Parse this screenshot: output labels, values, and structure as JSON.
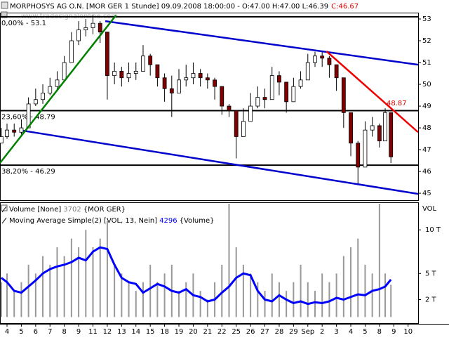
{
  "chart_data": [
    {
      "type": "candlestick",
      "title": "MORPHOSYS AG O.N. [MOR GER  1 Stunde] 09.09.2008 18:00:00 - O:47.00 H:47.00 L:46.39",
      "title_close": "C:46.67",
      "watermark": "www.tradesignalonline.com",
      "categories": [
        "4",
        "5",
        "6",
        "7",
        "8",
        "9",
        "11",
        "12",
        "13",
        "14",
        "15",
        "18",
        "19",
        "20",
        "21",
        "22",
        "25",
        "26",
        "27",
        "28",
        "29",
        "Sep",
        "2",
        "3",
        "4",
        "5",
        "8",
        "9",
        "10"
      ],
      "x": [
        -0.4,
        0,
        0.5,
        1,
        1.5,
        2,
        2.5,
        3,
        3.5,
        4,
        4.5,
        5,
        5.5,
        6,
        6.5,
        7,
        7.5,
        8,
        8.5,
        9,
        9.5,
        10,
        10.5,
        11,
        11.5,
        12,
        12.5,
        13,
        13.5,
        14,
        14.5,
        15,
        15.5,
        16,
        16.5,
        17,
        17.5,
        18,
        18.5,
        19,
        19.5,
        20,
        20.5,
        21,
        21.5,
        22,
        22.5,
        23,
        23.5,
        24,
        24.5,
        25,
        25.5,
        26,
        26.4,
        26.8
      ],
      "high": [
        48.0,
        48.2,
        48.2,
        48.4,
        49.4,
        49.8,
        50.0,
        50.3,
        50.6,
        51.3,
        52.4,
        52.9,
        53.0,
        53.2,
        52.9,
        51.9,
        51.0,
        50.8,
        51.0,
        51.0,
        51.8,
        51.4,
        50.9,
        50.5,
        50.4,
        50.7,
        50.9,
        51.0,
        50.7,
        50.5,
        50.3,
        49.6,
        49.1,
        48.4,
        48.9,
        49.6,
        49.9,
        49.8,
        50.8,
        50.6,
        50.0,
        50.3,
        50.6,
        51.4,
        51.5,
        51.5,
        51.3,
        50.7,
        49.5,
        48.2,
        47.4,
        48.3,
        48.5,
        48.2,
        48.9,
        47.0
      ],
      "low": [
        47.3,
        47.5,
        47.6,
        47.7,
        48.0,
        49.0,
        49.1,
        49.5,
        49.8,
        50.3,
        51.1,
        51.8,
        52.2,
        52.3,
        51.9,
        49.3,
        50.0,
        49.9,
        50.1,
        50.2,
        50.6,
        50.4,
        49.9,
        49.2,
        48.5,
        49.8,
        49.9,
        50.0,
        49.9,
        49.8,
        49.3,
        48.6,
        48.5,
        46.6,
        47.8,
        48.5,
        48.9,
        48.9,
        49.8,
        49.5,
        48.7,
        49.3,
        49.8,
        50.4,
        50.8,
        50.8,
        50.3,
        49.7,
        48.0,
        46.7,
        45.4,
        46.5,
        47.6,
        47.1,
        47.4,
        46.39
      ],
      "close": [
        47.6,
        47.9,
        47.8,
        48.0,
        49.1,
        49.3,
        49.6,
        49.9,
        50.2,
        51.0,
        52.0,
        52.5,
        52.6,
        52.8,
        52.4,
        50.4,
        50.6,
        50.3,
        50.5,
        50.6,
        51.3,
        50.9,
        50.3,
        49.8,
        49.6,
        50.2,
        50.3,
        50.5,
        50.3,
        50.2,
        49.9,
        49.0,
        48.8,
        47.6,
        48.3,
        49.0,
        49.4,
        49.3,
        50.4,
        50.1,
        49.2,
        49.9,
        50.2,
        51.0,
        51.3,
        51.2,
        50.9,
        50.3,
        48.7,
        47.3,
        46.2,
        47.9,
        48.1,
        47.4,
        48.7,
        46.67
      ],
      "up_color": "#ffffff",
      "down_color": "#800000",
      "xlim": [
        -0.49,
        28.7
      ],
      "ylim": [
        44.68,
        53.29
      ],
      "yticks": [
        45,
        46,
        47,
        48,
        49,
        50,
        51,
        52,
        53
      ],
      "levels": [
        {
          "value": 53.1,
          "label": "0,00% - 53.1"
        },
        {
          "value": 48.79,
          "label": "23,60% - 48.79"
        },
        {
          "value": 46.29,
          "label": "38,20% - 46.29"
        }
      ],
      "trendlines": [
        {
          "color": "#0000cc",
          "x": [
            6.86,
            28.7
          ],
          "y": [
            52.9,
            50.9
          ]
        },
        {
          "color": "#0000cc",
          "x": [
            1.13,
            28.7
          ],
          "y": [
            47.87,
            44.97
          ]
        },
        {
          "color": "#008000",
          "x": [
            -0.49,
            7.6
          ],
          "y": [
            46.39,
            53.16
          ]
        },
        {
          "color": "#ee0000",
          "x": [
            22.3,
            28.7
          ],
          "y": [
            51.52,
            47.8
          ]
        }
      ],
      "annotation": {
        "value": 48.87,
        "label": "48.87"
      }
    },
    {
      "type": "volume",
      "x": [
        -0.4,
        0,
        0.5,
        1,
        1.5,
        2,
        2.5,
        3,
        3.5,
        4,
        4.5,
        5,
        5.5,
        6,
        6.5,
        7,
        7.5,
        8,
        8.5,
        9,
        9.5,
        10,
        10.5,
        11,
        11.5,
        12,
        12.5,
        13,
        13.5,
        14,
        14.5,
        15,
        15.5,
        16,
        16.5,
        17,
        17.5,
        18,
        18.5,
        19,
        19.5,
        20,
        20.5,
        21,
        21.5,
        22,
        22.5,
        23,
        23.5,
        24,
        24.5,
        25,
        25.5,
        26,
        26.4,
        26.8
      ],
      "series": [
        {
          "name": "Volume [None]",
          "color": "#999999",
          "last_label": "3702",
          "source": "{MOR GER}",
          "values": [
            4,
            5,
            3,
            4,
            6,
            5,
            7,
            6,
            8,
            7,
            9,
            8,
            10,
            8,
            9,
            11,
            6,
            5,
            4,
            3,
            4,
            6,
            4,
            5,
            6,
            3,
            4,
            5,
            3,
            2,
            4,
            6,
            13,
            8,
            6,
            5,
            4,
            3,
            5,
            4,
            3,
            4,
            6,
            4,
            3,
            5,
            4,
            5,
            7,
            8,
            9,
            6,
            5,
            13,
            5,
            3.702
          ]
        },
        {
          "name": "Moving Average Simple(2) [VOL, 13, Nein]",
          "color": "#0000ff",
          "last_label": "4296",
          "source": "{Volume}",
          "values": [
            4.5,
            4.0,
            3.0,
            2.8,
            3.5,
            4.2,
            5.0,
            5.5,
            5.8,
            6.0,
            6.3,
            6.8,
            6.5,
            7.5,
            8.0,
            7.8,
            6.0,
            4.5,
            4.0,
            3.8,
            2.8,
            3.3,
            3.8,
            3.5,
            3.0,
            2.8,
            3.2,
            2.5,
            2.3,
            1.8,
            2.0,
            2.8,
            3.5,
            4.5,
            5.0,
            4.8,
            3.0,
            2.0,
            1.8,
            2.5,
            2.0,
            1.6,
            1.8,
            1.5,
            1.7,
            1.6,
            1.8,
            2.2,
            2.0,
            2.3,
            2.6,
            2.5,
            3.0,
            3.2,
            3.5,
            4.296
          ]
        }
      ],
      "axis_label": "VOL",
      "xlim": [
        -0.49,
        28.7
      ],
      "ylim": [
        -0.7,
        13.0
      ],
      "yticks": [
        {
          "value": 10,
          "label": "10 T"
        },
        {
          "value": 5,
          "label": "5 T"
        },
        {
          "value": 2,
          "label": "2 T"
        }
      ]
    }
  ]
}
